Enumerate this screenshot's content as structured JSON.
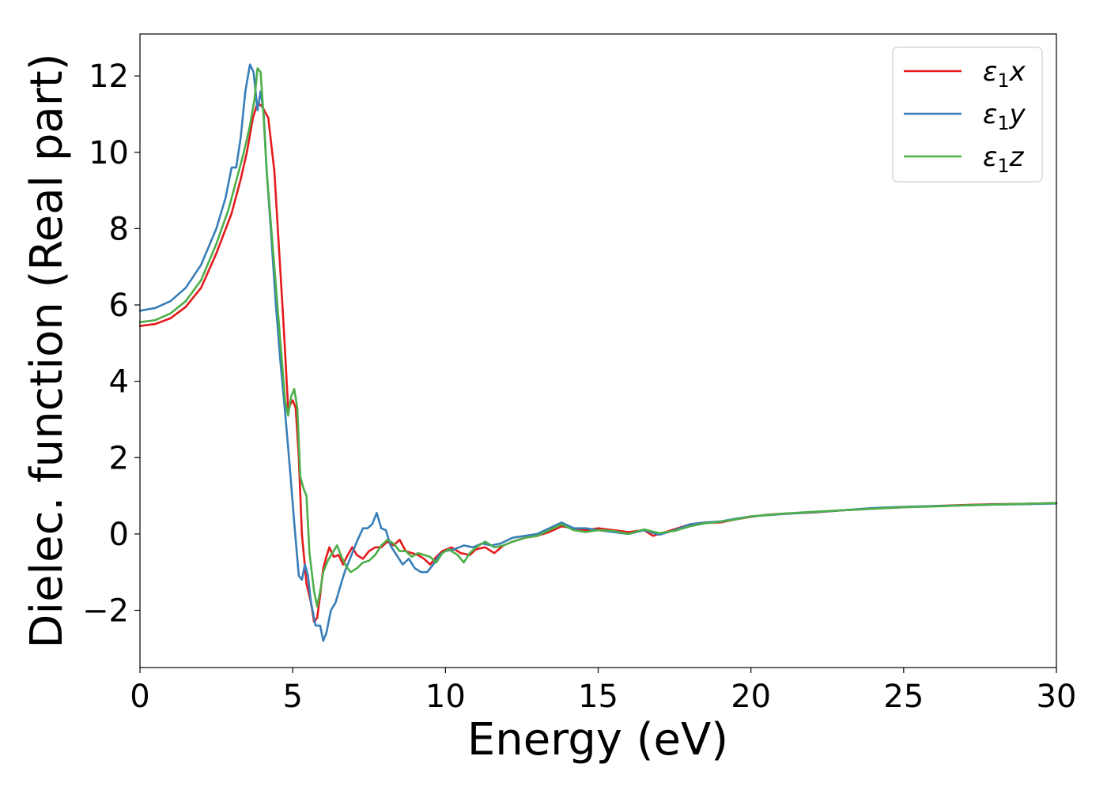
{
  "chart_data": {
    "type": "line",
    "title": "",
    "xlabel": "Energy (eV)",
    "ylabel": "Dielec. function (Real part)",
    "xlim": [
      0,
      30
    ],
    "ylim": [
      -3.5,
      13.1
    ],
    "xticks": [
      0,
      5,
      10,
      15,
      20,
      25,
      30
    ],
    "xtick_labels": [
      "0",
      "5",
      "10",
      "15",
      "20",
      "25",
      "30"
    ],
    "yticks": [
      -2,
      0,
      2,
      4,
      6,
      8,
      10,
      12
    ],
    "ytick_labels": [
      "−2",
      "0",
      "2",
      "4",
      "6",
      "8",
      "10",
      "12"
    ],
    "grid": false,
    "legend_position": "top-right",
    "series": [
      {
        "name": "ε₁x",
        "legend": {
          "base": "ε",
          "sub": "1",
          "var": "x"
        },
        "color": "#e41a1c",
        "points": [
          [
            0,
            5.45
          ],
          [
            0.5,
            5.5
          ],
          [
            1,
            5.65
          ],
          [
            1.5,
            5.95
          ],
          [
            2,
            6.45
          ],
          [
            2.5,
            7.35
          ],
          [
            3,
            8.4
          ],
          [
            3.3,
            9.3
          ],
          [
            3.5,
            10.0
          ],
          [
            3.7,
            10.9
          ],
          [
            3.85,
            11.3
          ],
          [
            4.0,
            11.2
          ],
          [
            4.2,
            10.9
          ],
          [
            4.4,
            9.5
          ],
          [
            4.55,
            7.5
          ],
          [
            4.7,
            5.5
          ],
          [
            4.85,
            3.3
          ],
          [
            5.0,
            3.5
          ],
          [
            5.1,
            3.3
          ],
          [
            5.2,
            2.0
          ],
          [
            5.3,
            0.0
          ],
          [
            5.45,
            -1.3
          ],
          [
            5.6,
            -1.8
          ],
          [
            5.7,
            -2.3
          ],
          [
            5.8,
            -2.2
          ],
          [
            5.9,
            -1.6
          ],
          [
            6.0,
            -0.9
          ],
          [
            6.1,
            -0.6
          ],
          [
            6.2,
            -0.35
          ],
          [
            6.35,
            -0.6
          ],
          [
            6.5,
            -0.55
          ],
          [
            6.65,
            -0.8
          ],
          [
            6.8,
            -0.55
          ],
          [
            6.95,
            -0.35
          ],
          [
            7.1,
            -0.55
          ],
          [
            7.3,
            -0.65
          ],
          [
            7.5,
            -0.45
          ],
          [
            7.7,
            -0.35
          ],
          [
            7.9,
            -0.35
          ],
          [
            8.1,
            -0.2
          ],
          [
            8.3,
            -0.3
          ],
          [
            8.5,
            -0.15
          ],
          [
            8.7,
            -0.45
          ],
          [
            8.9,
            -0.5
          ],
          [
            9.1,
            -0.55
          ],
          [
            9.3,
            -0.65
          ],
          [
            9.5,
            -0.8
          ],
          [
            9.7,
            -0.6
          ],
          [
            9.9,
            -0.45
          ],
          [
            10.2,
            -0.35
          ],
          [
            10.5,
            -0.5
          ],
          [
            10.8,
            -0.55
          ],
          [
            11.0,
            -0.4
          ],
          [
            11.3,
            -0.35
          ],
          [
            11.6,
            -0.5
          ],
          [
            11.9,
            -0.3
          ],
          [
            12.2,
            -0.2
          ],
          [
            12.6,
            -0.1
          ],
          [
            13.0,
            -0.05
          ],
          [
            13.4,
            0.05
          ],
          [
            13.8,
            0.2
          ],
          [
            14.2,
            0.15
          ],
          [
            14.6,
            0.1
          ],
          [
            15.0,
            0.15
          ],
          [
            15.5,
            0.1
          ],
          [
            16.0,
            0.05
          ],
          [
            16.5,
            0.1
          ],
          [
            16.8,
            -0.05
          ],
          [
            17.2,
            0.05
          ],
          [
            17.6,
            0.15
          ],
          [
            18.0,
            0.25
          ],
          [
            18.5,
            0.3
          ],
          [
            19.0,
            0.3
          ],
          [
            19.5,
            0.38
          ],
          [
            20.0,
            0.45
          ],
          [
            20.5,
            0.5
          ],
          [
            21.0,
            0.53
          ],
          [
            22.0,
            0.56
          ],
          [
            23.0,
            0.62
          ],
          [
            24.0,
            0.66
          ],
          [
            25.0,
            0.7
          ],
          [
            26.0,
            0.73
          ],
          [
            27.0,
            0.76
          ],
          [
            28.0,
            0.78
          ],
          [
            29.0,
            0.79
          ],
          [
            30.0,
            0.81
          ]
        ]
      },
      {
        "name": "ε₁y",
        "legend": {
          "base": "ε",
          "sub": "1",
          "var": "y"
        },
        "color": "#377eb8",
        "points": [
          [
            0,
            5.85
          ],
          [
            0.5,
            5.92
          ],
          [
            1,
            6.1
          ],
          [
            1.5,
            6.45
          ],
          [
            2,
            7.05
          ],
          [
            2.5,
            8.0
          ],
          [
            2.8,
            8.8
          ],
          [
            3.0,
            9.6
          ],
          [
            3.15,
            9.6
          ],
          [
            3.3,
            10.4
          ],
          [
            3.45,
            11.6
          ],
          [
            3.6,
            12.3
          ],
          [
            3.72,
            12.1
          ],
          [
            3.85,
            11.1
          ],
          [
            3.95,
            11.6
          ],
          [
            4.05,
            11.0
          ],
          [
            4.15,
            9.5
          ],
          [
            4.3,
            7.8
          ],
          [
            4.45,
            6.0
          ],
          [
            4.6,
            4.5
          ],
          [
            4.75,
            3.2
          ],
          [
            4.9,
            1.8
          ],
          [
            5.05,
            0.3
          ],
          [
            5.2,
            -1.1
          ],
          [
            5.3,
            -1.2
          ],
          [
            5.4,
            -0.8
          ],
          [
            5.5,
            -1.1
          ],
          [
            5.6,
            -1.8
          ],
          [
            5.75,
            -2.4
          ],
          [
            5.9,
            -2.4
          ],
          [
            6.0,
            -2.8
          ],
          [
            6.1,
            -2.6
          ],
          [
            6.25,
            -2.0
          ],
          [
            6.4,
            -1.8
          ],
          [
            6.55,
            -1.4
          ],
          [
            6.7,
            -1.0
          ],
          [
            6.9,
            -0.6
          ],
          [
            7.1,
            -0.2
          ],
          [
            7.3,
            0.15
          ],
          [
            7.45,
            0.15
          ],
          [
            7.6,
            0.25
          ],
          [
            7.75,
            0.55
          ],
          [
            7.9,
            0.15
          ],
          [
            8.05,
            0.1
          ],
          [
            8.2,
            -0.3
          ],
          [
            8.4,
            -0.55
          ],
          [
            8.6,
            -0.8
          ],
          [
            8.8,
            -0.65
          ],
          [
            9.0,
            -0.9
          ],
          [
            9.2,
            -1.0
          ],
          [
            9.4,
            -1.0
          ],
          [
            9.6,
            -0.8
          ],
          [
            9.8,
            -0.55
          ],
          [
            10.0,
            -0.45
          ],
          [
            10.3,
            -0.4
          ],
          [
            10.6,
            -0.3
          ],
          [
            10.9,
            -0.35
          ],
          [
            11.2,
            -0.25
          ],
          [
            11.5,
            -0.3
          ],
          [
            11.8,
            -0.25
          ],
          [
            12.2,
            -0.1
          ],
          [
            12.6,
            -0.05
          ],
          [
            13.0,
            0.0
          ],
          [
            13.4,
            0.15
          ],
          [
            13.8,
            0.3
          ],
          [
            14.2,
            0.15
          ],
          [
            14.6,
            0.15
          ],
          [
            15.0,
            0.1
          ],
          [
            15.5,
            0.05
          ],
          [
            16.0,
            0.0
          ],
          [
            16.5,
            0.1
          ],
          [
            17.0,
            -0.02
          ],
          [
            17.5,
            0.1
          ],
          [
            18.0,
            0.25
          ],
          [
            18.5,
            0.3
          ],
          [
            19.0,
            0.33
          ],
          [
            19.5,
            0.4
          ],
          [
            20.0,
            0.46
          ],
          [
            21.0,
            0.52
          ],
          [
            22.0,
            0.57
          ],
          [
            23.0,
            0.62
          ],
          [
            24.0,
            0.68
          ],
          [
            25.0,
            0.71
          ],
          [
            26.0,
            0.73
          ],
          [
            27.0,
            0.75
          ],
          [
            28.0,
            0.77
          ],
          [
            29.0,
            0.78
          ],
          [
            30.0,
            0.8
          ]
        ]
      },
      {
        "name": "ε₁z",
        "legend": {
          "base": "ε",
          "sub": "1",
          "var": "z"
        },
        "color": "#4daf4a",
        "points": [
          [
            0,
            5.55
          ],
          [
            0.5,
            5.6
          ],
          [
            1,
            5.78
          ],
          [
            1.5,
            6.1
          ],
          [
            2,
            6.65
          ],
          [
            2.5,
            7.6
          ],
          [
            2.9,
            8.5
          ],
          [
            3.2,
            9.4
          ],
          [
            3.4,
            10.0
          ],
          [
            3.6,
            10.7
          ],
          [
            3.75,
            11.4
          ],
          [
            3.85,
            12.2
          ],
          [
            3.95,
            12.1
          ],
          [
            4.05,
            10.9
          ],
          [
            4.15,
            9.5
          ],
          [
            4.3,
            8.0
          ],
          [
            4.45,
            6.5
          ],
          [
            4.6,
            5.0
          ],
          [
            4.75,
            3.5
          ],
          [
            4.85,
            3.1
          ],
          [
            4.95,
            3.6
          ],
          [
            5.05,
            3.8
          ],
          [
            5.15,
            3.3
          ],
          [
            5.25,
            1.5
          ],
          [
            5.35,
            1.2
          ],
          [
            5.45,
            1.0
          ],
          [
            5.55,
            -0.5
          ],
          [
            5.7,
            -1.5
          ],
          [
            5.8,
            -1.9
          ],
          [
            5.9,
            -1.5
          ],
          [
            6.0,
            -1.0
          ],
          [
            6.15,
            -0.7
          ],
          [
            6.3,
            -0.5
          ],
          [
            6.45,
            -0.3
          ],
          [
            6.6,
            -0.6
          ],
          [
            6.75,
            -0.85
          ],
          [
            6.9,
            -1.0
          ],
          [
            7.1,
            -0.9
          ],
          [
            7.3,
            -0.75
          ],
          [
            7.5,
            -0.7
          ],
          [
            7.7,
            -0.55
          ],
          [
            7.9,
            -0.3
          ],
          [
            8.1,
            -0.15
          ],
          [
            8.3,
            -0.25
          ],
          [
            8.5,
            -0.45
          ],
          [
            8.7,
            -0.45
          ],
          [
            8.9,
            -0.6
          ],
          [
            9.1,
            -0.5
          ],
          [
            9.3,
            -0.55
          ],
          [
            9.5,
            -0.6
          ],
          [
            9.7,
            -0.75
          ],
          [
            9.9,
            -0.5
          ],
          [
            10.1,
            -0.4
          ],
          [
            10.4,
            -0.55
          ],
          [
            10.6,
            -0.75
          ],
          [
            10.8,
            -0.5
          ],
          [
            11.0,
            -0.35
          ],
          [
            11.3,
            -0.2
          ],
          [
            11.6,
            -0.35
          ],
          [
            11.9,
            -0.3
          ],
          [
            12.2,
            -0.2
          ],
          [
            12.6,
            -0.1
          ],
          [
            13.0,
            -0.05
          ],
          [
            13.4,
            0.1
          ],
          [
            13.8,
            0.25
          ],
          [
            14.2,
            0.1
          ],
          [
            14.6,
            0.05
          ],
          [
            15.0,
            0.1
          ],
          [
            15.5,
            0.08
          ],
          [
            16.0,
            0.0
          ],
          [
            16.5,
            0.12
          ],
          [
            17.0,
            0.02
          ],
          [
            17.5,
            0.08
          ],
          [
            18.0,
            0.2
          ],
          [
            18.5,
            0.28
          ],
          [
            19.0,
            0.32
          ],
          [
            19.5,
            0.38
          ],
          [
            20.0,
            0.46
          ],
          [
            21.0,
            0.53
          ],
          [
            22.0,
            0.58
          ],
          [
            23.0,
            0.62
          ],
          [
            24.0,
            0.66
          ],
          [
            25.0,
            0.7
          ],
          [
            26.0,
            0.72
          ],
          [
            27.0,
            0.75
          ],
          [
            28.0,
            0.77
          ],
          [
            29.0,
            0.79
          ],
          [
            30.0,
            0.81
          ]
        ]
      }
    ]
  }
}
